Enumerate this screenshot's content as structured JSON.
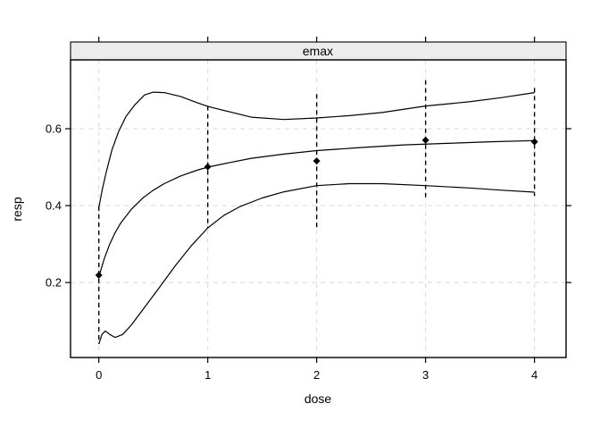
{
  "chart_data": {
    "type": "line",
    "title": "emax",
    "xlabel": "dose",
    "ylabel": "resp",
    "x_ticks": [
      0,
      1,
      2,
      3,
      4
    ],
    "y_ticks": [
      0.2,
      0.4,
      0.6
    ],
    "xlim": [
      -0.26,
      4.29
    ],
    "ylim": [
      0.005,
      0.779
    ],
    "grid": true,
    "legend": "none",
    "colors": {
      "strip_fill": "#ececec",
      "grid": "#d8d8d8",
      "line": "#000000",
      "point": "#000000",
      "error_bar": "#000000"
    },
    "series": [
      {
        "name": "upper-confidence-band",
        "points": [
          [
            0,
            0.395
          ],
          [
            0.03,
            0.44
          ],
          [
            0.07,
            0.49
          ],
          [
            0.12,
            0.545
          ],
          [
            0.18,
            0.592
          ],
          [
            0.25,
            0.632
          ],
          [
            0.33,
            0.662
          ],
          [
            0.42,
            0.688
          ],
          [
            0.5,
            0.695
          ],
          [
            0.6,
            0.694
          ],
          [
            0.75,
            0.684
          ],
          [
            0.9,
            0.668
          ],
          [
            1.0,
            0.658
          ],
          [
            1.2,
            0.644
          ],
          [
            1.4,
            0.63
          ],
          [
            1.7,
            0.624
          ],
          [
            2.0,
            0.628
          ],
          [
            2.3,
            0.634
          ],
          [
            2.6,
            0.642
          ],
          [
            3.0,
            0.659
          ],
          [
            3.4,
            0.67
          ],
          [
            3.7,
            0.681
          ],
          [
            4.0,
            0.694
          ]
        ]
      },
      {
        "name": "fitted-emax-curve",
        "points": [
          [
            0,
            0.215
          ],
          [
            0.05,
            0.262
          ],
          [
            0.1,
            0.3
          ],
          [
            0.15,
            0.33
          ],
          [
            0.2,
            0.354
          ],
          [
            0.3,
            0.391
          ],
          [
            0.4,
            0.419
          ],
          [
            0.5,
            0.44
          ],
          [
            0.6,
            0.457
          ],
          [
            0.75,
            0.477
          ],
          [
            0.9,
            0.492
          ],
          [
            1.0,
            0.5
          ],
          [
            1.2,
            0.512
          ],
          [
            1.4,
            0.523
          ],
          [
            1.7,
            0.534
          ],
          [
            2.0,
            0.543
          ],
          [
            2.4,
            0.551
          ],
          [
            2.8,
            0.558
          ],
          [
            3.2,
            0.562
          ],
          [
            3.6,
            0.566
          ],
          [
            4.0,
            0.569
          ]
        ]
      },
      {
        "name": "lower-confidence-band",
        "points": [
          [
            0,
            0.04
          ],
          [
            0.03,
            0.066
          ],
          [
            0.06,
            0.074
          ],
          [
            0.1,
            0.065
          ],
          [
            0.15,
            0.057
          ],
          [
            0.22,
            0.065
          ],
          [
            0.3,
            0.09
          ],
          [
            0.4,
            0.128
          ],
          [
            0.55,
            0.185
          ],
          [
            0.7,
            0.243
          ],
          [
            0.85,
            0.296
          ],
          [
            1.0,
            0.342
          ],
          [
            1.15,
            0.375
          ],
          [
            1.3,
            0.398
          ],
          [
            1.5,
            0.42
          ],
          [
            1.7,
            0.436
          ],
          [
            2.0,
            0.452
          ],
          [
            2.3,
            0.457
          ],
          [
            2.6,
            0.457
          ],
          [
            3.0,
            0.452
          ],
          [
            3.4,
            0.446
          ],
          [
            3.7,
            0.44
          ],
          [
            4.0,
            0.435
          ]
        ]
      }
    ],
    "dose_means": [
      [
        0,
        0.219
      ],
      [
        1,
        0.501
      ],
      [
        2,
        0.516
      ],
      [
        3,
        0.57
      ],
      [
        4,
        0.566
      ]
    ],
    "error_bars": [
      {
        "x": 0,
        "low": 0.04,
        "high": 0.398
      },
      {
        "x": 1,
        "low": 0.342,
        "high": 0.659
      },
      {
        "x": 2,
        "low": 0.338,
        "high": 0.69
      },
      {
        "x": 3,
        "low": 0.414,
        "high": 0.726
      },
      {
        "x": 4,
        "low": 0.425,
        "high": 0.706
      }
    ]
  }
}
